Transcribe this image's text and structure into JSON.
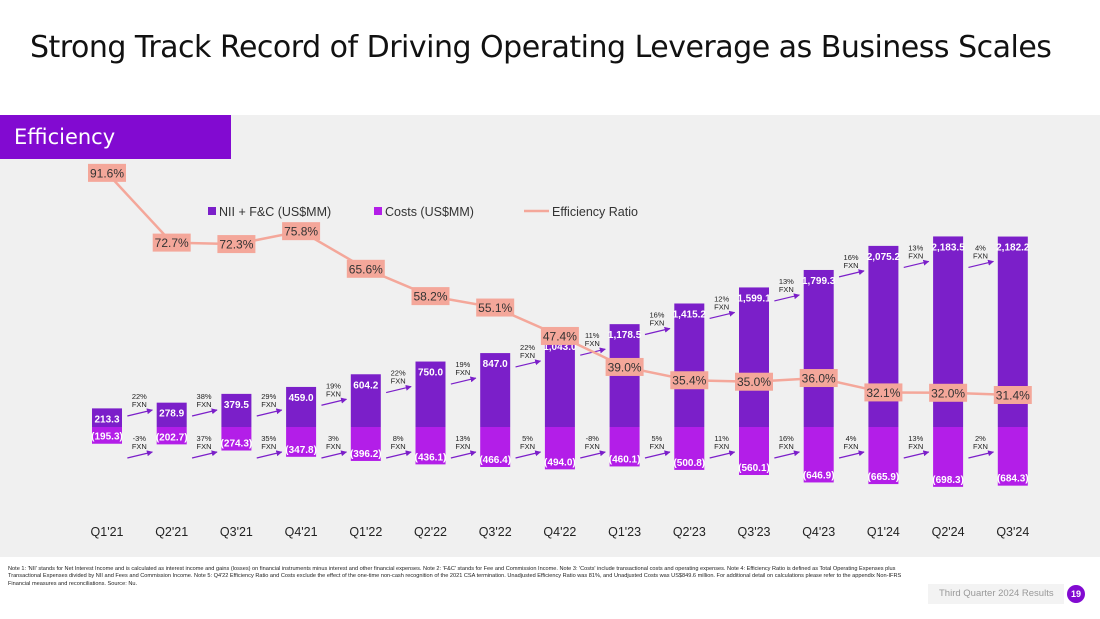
{
  "page": {
    "title": "Strong Track Record of Driving Operating Leverage as Business Scales",
    "section": "Efficiency",
    "footer_label": "Third Quarter 2024 Results",
    "page_number": "19",
    "footnote": "Note 1: 'NII' stands for Net Interest Income and is calculated as interest income and gains (losses) on financial instruments minus interest and other financial expenses. Note 2: 'F&C' stands for Fee and Commission Income. Note 3: 'Costs' include transactional costs and operating expenses. Note 4: Efficiency Ratio is defined as Total Operating Expenses plus Transactional Expenses divided by NII and Fees and Commission Income. Note 5: Q4'22 Efficiency Ratio and Costs exclude the effect of the one-time non-cash recognition of the 2021 CSA termination. Unadjusted Efficiency Ratio was 81%, and Unadjusted Costs was US$849.6 million. For additional detail on calculations please refer to the appendix Non-IFRS Financial measures and reconciliations. Source: Nu."
  },
  "chart_data": {
    "type": "bar",
    "categories": [
      "Q1'21",
      "Q2'21",
      "Q3'21",
      "Q4'21",
      "Q1'22",
      "Q2'22",
      "Q3'22",
      "Q4'22",
      "Q1'23",
      "Q2'23",
      "Q3'23",
      "Q4'23",
      "Q1'24",
      "Q2'24",
      "Q3'24"
    ],
    "series": [
      {
        "name": "NII + F&C (US$MM)",
        "values": [
          213.3,
          278.9,
          379.5,
          459.0,
          604.2,
          750.0,
          847.0,
          1043.0,
          1178.5,
          1415.2,
          1599.1,
          1799.3,
          2075.2,
          2183.5,
          2182.2
        ],
        "labels": [
          "213.3",
          "278.9",
          "379.5",
          "459.0",
          "604.2",
          "750.0",
          "847.0",
          "1,043.0",
          "1,178.5",
          "1,415.2",
          "1,599.1",
          "1,799.3",
          "2,075.2",
          "2,183.5",
          "2,182.2"
        ],
        "color": "#7b1fc9"
      },
      {
        "name": "Costs (US$MM)",
        "values": [
          -195.3,
          -202.7,
          -274.3,
          -347.8,
          -396.2,
          -436.1,
          -466.4,
          -494.0,
          -460.1,
          -500.8,
          -560.1,
          -646.9,
          -665.9,
          -698.3,
          -684.3
        ],
        "labels": [
          "(195.3)",
          "(202.7)",
          "(274.3)",
          "(347.8)",
          "(396.2)",
          "(436.1)",
          "(466.4)",
          "(494.0)",
          "(460.1)",
          "(500.8)",
          "(560.1)",
          "(646.9)",
          "(665.9)",
          "(698.3)",
          "(684.3)"
        ],
        "color": "#b31ee8"
      },
      {
        "name": "Efficiency Ratio",
        "values": [
          91.6,
          72.7,
          72.3,
          75.8,
          65.6,
          58.2,
          55.1,
          47.4,
          39.0,
          35.4,
          35.0,
          36.0,
          32.1,
          32.0,
          31.4
        ],
        "labels": [
          "91.6%",
          "72.7%",
          "72.3%",
          "75.8%",
          "65.6%",
          "58.2%",
          "55.1%",
          "47.4%",
          "39.0%",
          "35.4%",
          "35.0%",
          "36.0%",
          "32.1%",
          "32.0%",
          "31.4%"
        ],
        "color": "#f4a79a"
      }
    ],
    "revenue_growth_fxn": [
      "22%",
      "38%",
      "29%",
      "19%",
      "22%",
      "19%",
      "22%",
      "11%",
      "16%",
      "12%",
      "13%",
      "16%",
      "13%",
      "4%"
    ],
    "cost_growth_fxn": [
      "-3%",
      "37%",
      "35%",
      "3%",
      "8%",
      "13%",
      "5%",
      "-8%",
      "5%",
      "11%",
      "16%",
      "4%",
      "13%",
      "2%"
    ],
    "growth_suffix": "FXN",
    "legend_position": "top",
    "grid": false
  }
}
